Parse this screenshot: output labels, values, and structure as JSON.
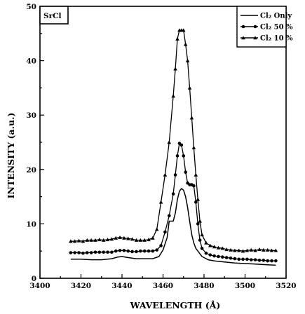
{
  "chart_data": {
    "type": "line",
    "panel_label": "SrCl",
    "xlabel": "WAVELENGTH (Å)",
    "ylabel": "INTENSITY (a.u.)",
    "xlim": [
      3400,
      3520
    ],
    "ylim": [
      0,
      50
    ],
    "xticks": [
      3400,
      3420,
      3440,
      3460,
      3480,
      3500,
      3520
    ],
    "yticks": [
      0,
      10,
      20,
      30,
      40,
      50
    ],
    "grid": false,
    "legend_position": "top-right",
    "series": [
      {
        "name": "Cl₂ Only",
        "marker": "none",
        "x": [
          3415,
          3420,
          3425,
          3430,
          3435,
          3438,
          3440,
          3443,
          3447,
          3450,
          3455,
          3458,
          3460,
          3462,
          3463,
          3465,
          3466,
          3467,
          3468,
          3469,
          3470,
          3471,
          3472,
          3473,
          3474,
          3475,
          3476,
          3477,
          3478,
          3479,
          3480,
          3482,
          3485,
          3490,
          3495,
          3500,
          3505,
          3510,
          3515
        ],
        "values": [
          3.5,
          3.5,
          3.4,
          3.4,
          3.6,
          3.9,
          4.0,
          3.8,
          3.6,
          3.6,
          3.6,
          4.0,
          5.2,
          7.5,
          10.5,
          10.5,
          12.0,
          14.5,
          16.0,
          16.5,
          16.2,
          15.0,
          13.0,
          10.5,
          8.0,
          6.5,
          5.5,
          5.0,
          4.5,
          4.0,
          3.8,
          3.4,
          3.2,
          3.0,
          2.8,
          2.7,
          2.6,
          2.5,
          2.4
        ]
      },
      {
        "name": "Cl₂ 50 %",
        "marker": "circle",
        "x": [
          3415,
          3417,
          3419,
          3421,
          3423,
          3425,
          3427,
          3429,
          3431,
          3433,
          3435,
          3437,
          3439,
          3441,
          3443,
          3445,
          3447,
          3449,
          3451,
          3453,
          3455,
          3457,
          3459,
          3461,
          3463,
          3465,
          3466,
          3467,
          3468,
          3469,
          3470,
          3471,
          3472,
          3473,
          3474,
          3475,
          3476,
          3477,
          3478,
          3479,
          3481,
          3483,
          3485,
          3487,
          3489,
          3491,
          3493,
          3495,
          3497,
          3499,
          3501,
          3503,
          3505,
          3507,
          3509,
          3511,
          3513,
          3515
        ],
        "values": [
          4.7,
          4.7,
          4.7,
          4.6,
          4.7,
          4.7,
          4.8,
          4.8,
          4.8,
          4.8,
          4.8,
          5.0,
          5.1,
          5.1,
          5.0,
          4.9,
          4.9,
          5.0,
          5.0,
          5.0,
          5.0,
          5.2,
          6.0,
          8.5,
          11.5,
          15.5,
          19.0,
          22.5,
          24.8,
          24.5,
          22.5,
          19.5,
          17.5,
          17.2,
          17.2,
          17.0,
          14.0,
          10.0,
          7.0,
          5.5,
          4.6,
          4.3,
          4.1,
          4.0,
          3.9,
          3.8,
          3.7,
          3.6,
          3.5,
          3.5,
          3.5,
          3.4,
          3.4,
          3.3,
          3.3,
          3.2,
          3.2,
          3.2
        ]
      },
      {
        "name": "Cl₂ 10 %",
        "marker": "triangle",
        "x": [
          3415,
          3417,
          3419,
          3421,
          3423,
          3425,
          3427,
          3429,
          3431,
          3433,
          3435,
          3437,
          3439,
          3441,
          3443,
          3445,
          3447,
          3449,
          3451,
          3453,
          3455,
          3457,
          3459,
          3461,
          3463,
          3465,
          3466,
          3467,
          3468,
          3469,
          3470,
          3471,
          3472,
          3473,
          3474,
          3475,
          3476,
          3477,
          3478,
          3479,
          3481,
          3483,
          3485,
          3487,
          3489,
          3491,
          3493,
          3495,
          3497,
          3499,
          3501,
          3503,
          3505,
          3507,
          3509,
          3511,
          3513,
          3515
        ],
        "values": [
          6.8,
          6.8,
          6.9,
          6.8,
          7.0,
          7.0,
          7.0,
          7.1,
          7.0,
          7.1,
          7.2,
          7.4,
          7.5,
          7.4,
          7.3,
          7.2,
          7.0,
          7.0,
          7.0,
          7.1,
          7.4,
          9.0,
          14.0,
          19.0,
          25.0,
          33.5,
          38.5,
          44.0,
          45.6,
          45.6,
          45.6,
          43.0,
          40.0,
          35.0,
          29.5,
          24.0,
          19.0,
          14.5,
          10.5,
          8.0,
          6.5,
          6.0,
          5.8,
          5.6,
          5.5,
          5.3,
          5.2,
          5.1,
          5.1,
          5.0,
          5.1,
          5.2,
          5.1,
          5.3,
          5.2,
          5.2,
          5.1,
          5.1
        ]
      }
    ]
  }
}
